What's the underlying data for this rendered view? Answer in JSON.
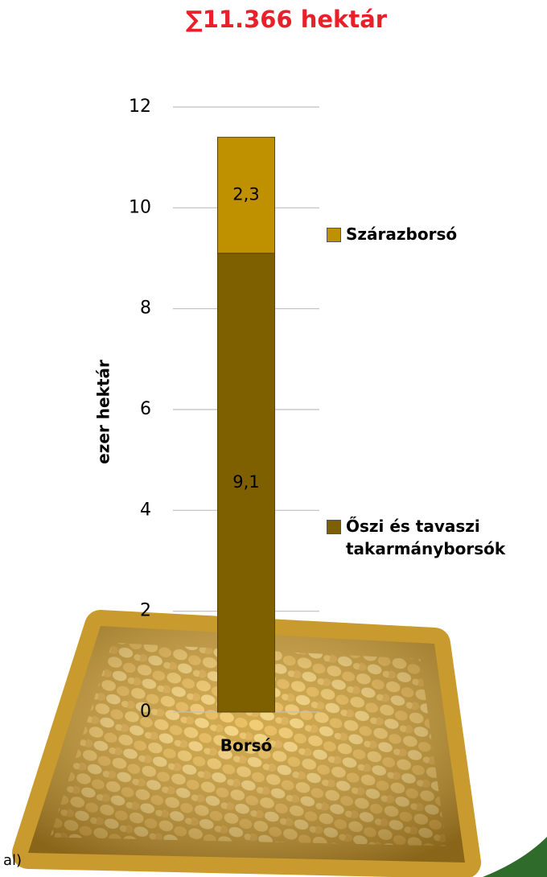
{
  "chart_data": {
    "type": "stacked_bar",
    "title": "∑11.366 hektár",
    "ylabel": "ezer hektár",
    "categories": [
      "Borsó"
    ],
    "series": [
      {
        "name": "Őszi és tavaszi takarmányborsók",
        "color": "#7f6000",
        "values": [
          9.1
        ],
        "value_labels": [
          "9,1"
        ]
      },
      {
        "name": "Szárazborsó",
        "color": "#bf9000",
        "values": [
          2.3
        ],
        "value_labels": [
          "2,3"
        ]
      }
    ],
    "ylim": [
      0,
      12
    ],
    "yticks": [
      0,
      2,
      4,
      6,
      8,
      10,
      12
    ],
    "grid": true,
    "legend": "right",
    "footnote": "al)"
  }
}
